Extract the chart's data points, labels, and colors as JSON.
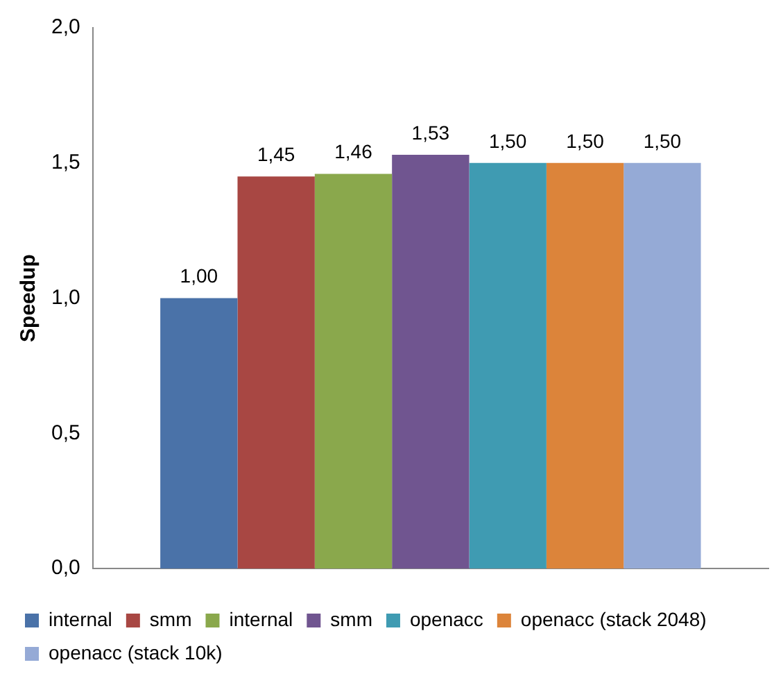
{
  "chart_data": {
    "type": "bar",
    "ylabel": "Speedup",
    "categories": [
      null
    ],
    "ylim": [
      0,
      2
    ],
    "yticks": [
      {
        "value": 0,
        "label": "0,0"
      },
      {
        "value": 0.5,
        "label": "0,5"
      },
      {
        "value": 1,
        "label": "1,0"
      },
      {
        "value": 1.5,
        "label": "1,5"
      },
      {
        "value": 2,
        "label": "2,0"
      }
    ],
    "grid": false,
    "legend": "bottom",
    "series": [
      {
        "name": "internal",
        "color": "#4a72a8",
        "values": [
          1.0
        ],
        "value_labels": [
          "1,00"
        ]
      },
      {
        "name": "smm",
        "color": "#a84743",
        "values": [
          1.45
        ],
        "value_labels": [
          "1,45"
        ]
      },
      {
        "name": "internal",
        "color": "#8aa84c",
        "values": [
          1.46
        ],
        "value_labels": [
          "1,46"
        ]
      },
      {
        "name": "smm",
        "color": "#705590",
        "values": [
          1.53
        ],
        "value_labels": [
          "1,53"
        ]
      },
      {
        "name": "openacc",
        "color": "#3f9bb2",
        "values": [
          1.5
        ],
        "value_labels": [
          "1,50"
        ]
      },
      {
        "name": "openacc (stack 2048)",
        "color": "#dc843a",
        "values": [
          1.5
        ],
        "value_labels": [
          "1,50"
        ]
      },
      {
        "name": "openacc (stack 10k)",
        "color": "#95aad6",
        "values": [
          1.5
        ],
        "value_labels": [
          "1,50"
        ]
      }
    ]
  }
}
